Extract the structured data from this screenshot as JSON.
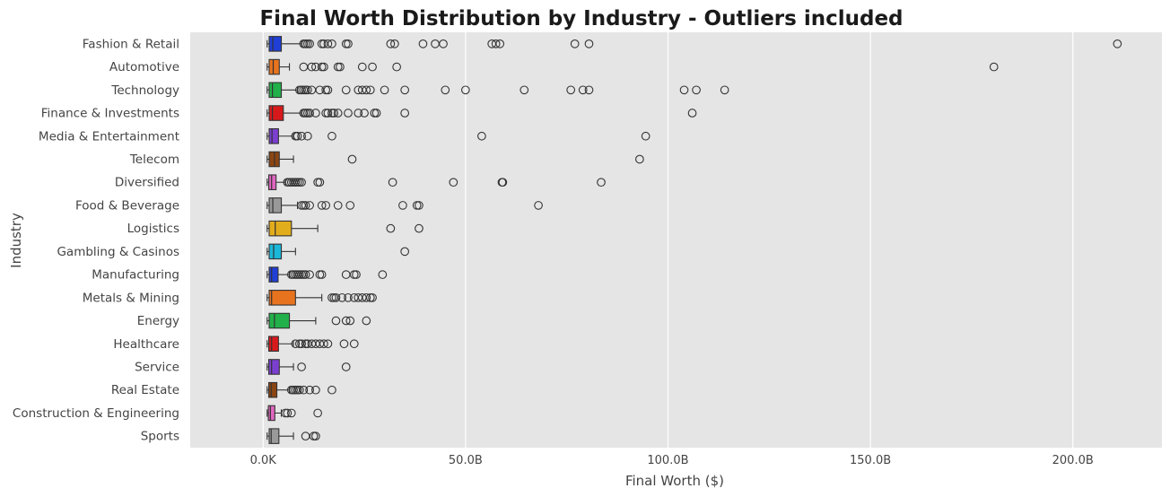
{
  "chart_data": {
    "type": "box",
    "orientation": "horizontal",
    "title": "Final Worth Distribution by Industry - Outliers included",
    "xlabel": "Final Worth ($)",
    "ylabel": "Industry",
    "xlim": [
      -18,
      222
    ],
    "x_ticks": [
      {
        "value": 0,
        "label": "0.0K"
      },
      {
        "value": 50,
        "label": "50.0B"
      },
      {
        "value": 100,
        "label": "100.0B"
      },
      {
        "value": 150,
        "label": "150.0B"
      },
      {
        "value": 200,
        "label": "200.0B"
      }
    ],
    "grid": true,
    "background": "#e5e5e5",
    "value_unit": "billions",
    "series": [
      {
        "name": "Fashion & Retail",
        "color": "#1f3fd6",
        "min": 1,
        "q1": 1.5,
        "median": 2.4,
        "q3": 4.5,
        "max": 9.5,
        "outliers": [
          10,
          10.5,
          11,
          11.5,
          14.5,
          15,
          16,
          17,
          20.5,
          21,
          31.5,
          32.5,
          39.5,
          42.5,
          44.5,
          56.5,
          57.5,
          58.5,
          77,
          80.5,
          211
        ]
      },
      {
        "name": "Automotive",
        "color": "#e8731e",
        "min": 1,
        "q1": 1.5,
        "median": 2.5,
        "q3": 4,
        "max": 6.5,
        "outliers": [
          10,
          12,
          13,
          14.5,
          15,
          18.5,
          19,
          24.5,
          27,
          33,
          180.5
        ]
      },
      {
        "name": "Technology",
        "color": "#22b04a",
        "min": 1,
        "q1": 1.5,
        "median": 2.3,
        "q3": 4.5,
        "max": 8.5,
        "outliers": [
          9,
          9.5,
          10,
          10.5,
          11,
          12,
          14,
          15.5,
          16,
          20.5,
          23.5,
          24.5,
          25.5,
          26.5,
          30,
          35,
          45,
          50,
          64.5,
          76,
          79,
          80.5,
          104,
          107,
          114
        ]
      },
      {
        "name": "Finance & Investments",
        "color": "#d7191c",
        "min": 1,
        "q1": 1.5,
        "median": 2.3,
        "q3": 5,
        "max": 9.5,
        "outliers": [
          10,
          10.5,
          11,
          11.5,
          13,
          15.5,
          16,
          17,
          17.5,
          18.5,
          21,
          23.5,
          25,
          27.5,
          28,
          35,
          106
        ]
      },
      {
        "name": "Media & Entertainment",
        "color": "#7b3fd0",
        "min": 1,
        "q1": 1.5,
        "median": 2.2,
        "q3": 3.8,
        "max": 7.5,
        "outliers": [
          8,
          8.5,
          9.5,
          11,
          17,
          54,
          94.5
        ]
      },
      {
        "name": "Telecom",
        "color": "#8b4513",
        "min": 1,
        "q1": 1.5,
        "median": 2.8,
        "q3": 4,
        "max": 7.5,
        "outliers": [
          22,
          93
        ]
      },
      {
        "name": "Diversified",
        "color": "#e066c0",
        "min": 1,
        "q1": 1.4,
        "median": 2.1,
        "q3": 3.2,
        "max": 5.5,
        "outliers": [
          6,
          6.5,
          7,
          7.5,
          8,
          8.5,
          9,
          9.5,
          13.5,
          14,
          32,
          47,
          59,
          59.2,
          83.5
        ]
      },
      {
        "name": "Food & Beverage",
        "color": "#999999",
        "min": 1,
        "q1": 1.5,
        "median": 2.4,
        "q3": 4.5,
        "max": 8.5,
        "outliers": [
          9.5,
          10,
          10.5,
          11.5,
          14.5,
          15.5,
          18.5,
          21.5,
          34.5,
          38,
          38.5,
          68
        ]
      },
      {
        "name": "Logistics",
        "color": "#e2ad1c",
        "min": 1,
        "q1": 1.5,
        "median": 3,
        "q3": 7,
        "max": 13.5,
        "outliers": [
          31.5,
          38.5
        ]
      },
      {
        "name": "Gambling & Casinos",
        "color": "#1ab7d8",
        "min": 1,
        "q1": 1.5,
        "median": 2.6,
        "q3": 4.5,
        "max": 8,
        "outliers": [
          35
        ]
      },
      {
        "name": "Manufacturing",
        "color": "#1f3fd6",
        "min": 1,
        "q1": 1.5,
        "median": 2.1,
        "q3": 3.7,
        "max": 6.5,
        "outliers": [
          7,
          7.5,
          8,
          8.5,
          9,
          9.5,
          10,
          10.5,
          11.5,
          14,
          14.5,
          20.5,
          22.5,
          23,
          29.5
        ]
      },
      {
        "name": "Metals & Mining",
        "color": "#e8731e",
        "min": 1,
        "q1": 1.5,
        "median": 2.1,
        "q3": 8,
        "max": 14.5,
        "outliers": [
          17,
          17.5,
          18,
          19.5,
          21,
          22.5,
          23.5,
          24.5,
          25.5,
          26.5,
          27
        ]
      },
      {
        "name": "Energy",
        "color": "#22b04a",
        "min": 1,
        "q1": 1.5,
        "median": 2.8,
        "q3": 6.5,
        "max": 13,
        "outliers": [
          18,
          20.5,
          21.5,
          25.5
        ]
      },
      {
        "name": "Healthcare",
        "color": "#d7191c",
        "min": 1,
        "q1": 1.4,
        "median": 2.1,
        "q3": 3.8,
        "max": 7.5,
        "outliers": [
          8,
          9,
          9.5,
          10.5,
          11,
          12,
          13,
          14,
          15,
          16,
          20,
          22.5
        ]
      },
      {
        "name": "Service",
        "color": "#7b3fd0",
        "min": 1,
        "q1": 1.4,
        "median": 2.1,
        "q3": 4,
        "max": 7.5,
        "outliers": [
          9.5,
          20.5
        ]
      },
      {
        "name": "Real Estate",
        "color": "#8b4513",
        "min": 1,
        "q1": 1.4,
        "median": 2,
        "q3": 3.4,
        "max": 6.5,
        "outliers": [
          7,
          7.5,
          8,
          8.5,
          9,
          10,
          11.5,
          13,
          17
        ]
      },
      {
        "name": "Construction & Engineering",
        "color": "#e066c0",
        "min": 1,
        "q1": 1.3,
        "median": 1.8,
        "q3": 2.9,
        "max": 4.5,
        "outliers": [
          5.5,
          6,
          7,
          13.5
        ]
      },
      {
        "name": "Sports",
        "color": "#999999",
        "min": 1,
        "q1": 1.5,
        "median": 2,
        "q3": 3.9,
        "max": 7.5,
        "outliers": [
          10.5,
          12.5,
          13
        ]
      }
    ]
  }
}
